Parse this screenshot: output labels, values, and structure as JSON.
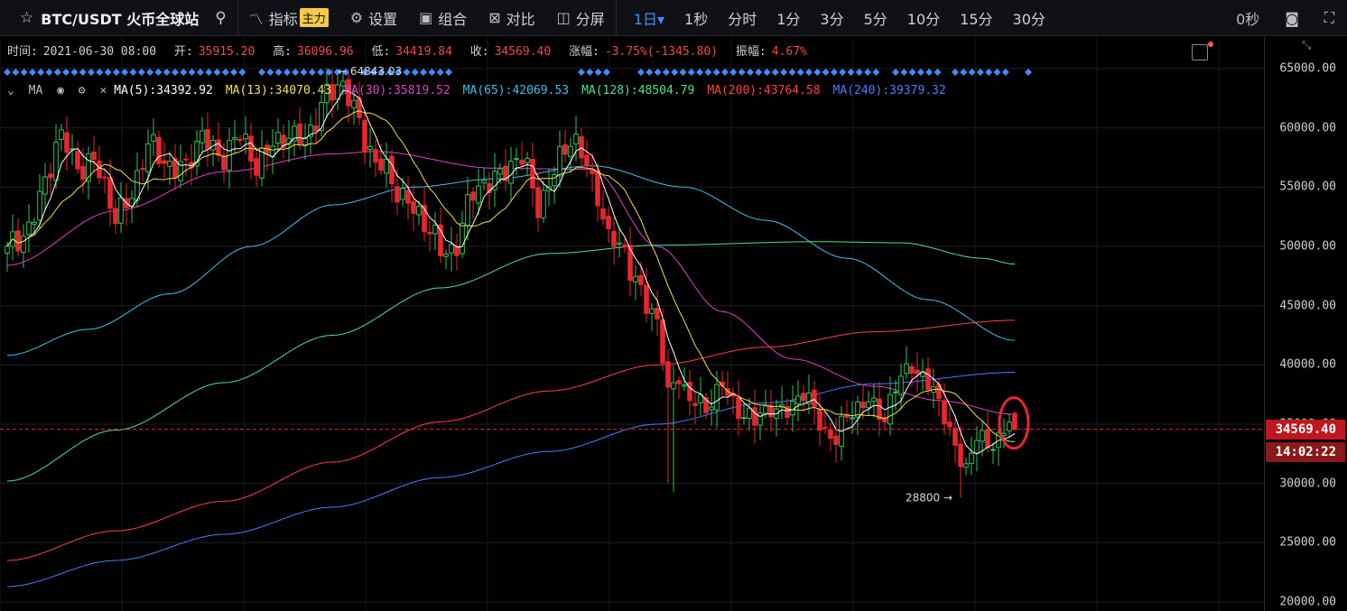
{
  "toolbar": {
    "symbol": "BTC/USDT 火币全球站",
    "indicator_label": "指标",
    "indicator_badge": "主力",
    "settings_label": "设置",
    "combo_label": "组合",
    "compare_label": "对比",
    "split_label": "分屏",
    "intervals": [
      {
        "label": "1日▾",
        "active": true
      },
      {
        "label": "1秒",
        "active": false
      },
      {
        "label": "分时",
        "active": false
      },
      {
        "label": "1分",
        "active": false
      },
      {
        "label": "3分",
        "active": false
      },
      {
        "label": "5分",
        "active": false
      },
      {
        "label": "10分",
        "active": false
      },
      {
        "label": "15分",
        "active": false
      },
      {
        "label": "30分",
        "active": false
      }
    ],
    "countdown": "0秒"
  },
  "ohlc": {
    "time_label": "时间:",
    "time_value": "2021-06-30 08:00",
    "open_label": "开:",
    "open_value": "35915.20",
    "high_label": "高:",
    "high_value": "36096.96",
    "low_label": "低:",
    "low_value": "34419.84",
    "close_label": "收:",
    "close_value": "34569.40",
    "change_label": "涨幅:",
    "change_value": "-3.75%(-1345.80)",
    "amp_label": "振幅:",
    "amp_value": "4.67%"
  },
  "ma_legend": {
    "name": "MA",
    "items": [
      {
        "label": "MA(5):34392.92",
        "color": "#ffffff"
      },
      {
        "label": "MA(13):34070.43",
        "color": "#f0e050"
      },
      {
        "label": "MA(30):35819.52",
        "color": "#e040c8"
      },
      {
        "label": "MA(65):42069.53",
        "color": "#40c0e8"
      },
      {
        "label": "MA(128):48504.79",
        "color": "#50e090"
      },
      {
        "label": "MA(200):43764.58",
        "color": "#ff4040"
      },
      {
        "label": "MA(240):39379.32",
        "color": "#4a7cff"
      }
    ]
  },
  "colors": {
    "up": "#2ec45a",
    "down": "#e8262e",
    "marker": "#3f8cff",
    "price_line": "#e8262e",
    "highlight": "#e8262e"
  },
  "annotations": {
    "high": "← 64843.03",
    "low": "28800 →"
  },
  "last_price": "34569.40",
  "countdown_tag": "14:02:22",
  "chart_data": {
    "type": "candlestick",
    "title": "",
    "ylim": [
      19500,
      68200
    ],
    "y_ticks": [
      "65000.00",
      "60000.00",
      "55000.00",
      "50000.00",
      "45000.00",
      "40000.00",
      "35000.00",
      "30000.00",
      "25000.00",
      "20000.00"
    ],
    "y_tick_values": [
      65000,
      60000,
      55000,
      50000,
      45000,
      40000,
      35000,
      30000,
      25000,
      20000
    ],
    "x_start": "2021-02-05",
    "x_end": "2021-06-30",
    "close_anchors": [
      {
        "i": 0,
        "v": 49000
      },
      {
        "i": 4,
        "v": 52000
      },
      {
        "i": 7,
        "v": 55500
      },
      {
        "i": 10,
        "v": 58800
      },
      {
        "i": 13,
        "v": 57500
      },
      {
        "i": 16,
        "v": 56800
      },
      {
        "i": 20,
        "v": 52500
      },
      {
        "i": 23,
        "v": 55000
      },
      {
        "i": 26,
        "v": 57800
      },
      {
        "i": 29,
        "v": 57600
      },
      {
        "i": 33,
        "v": 56500
      },
      {
        "i": 36,
        "v": 58900
      },
      {
        "i": 40,
        "v": 58200
      },
      {
        "i": 43,
        "v": 58700
      },
      {
        "i": 46,
        "v": 57000
      },
      {
        "i": 49,
        "v": 59200
      },
      {
        "i": 53,
        "v": 58400
      },
      {
        "i": 56,
        "v": 60500
      },
      {
        "i": 59,
        "v": 62500
      },
      {
        "i": 62,
        "v": 63300
      },
      {
        "i": 65,
        "v": 61200
      },
      {
        "i": 68,
        "v": 56500
      },
      {
        "i": 71,
        "v": 55500
      },
      {
        "i": 74,
        "v": 54200
      },
      {
        "i": 77,
        "v": 51600
      },
      {
        "i": 80,
        "v": 49500
      },
      {
        "i": 83,
        "v": 50800
      },
      {
        "i": 86,
        "v": 54000
      },
      {
        "i": 89,
        "v": 55600
      },
      {
        "i": 92,
        "v": 57000
      },
      {
        "i": 95,
        "v": 56800
      },
      {
        "i": 98,
        "v": 53900
      },
      {
        "i": 101,
        "v": 56500
      },
      {
        "i": 104,
        "v": 58600
      },
      {
        "i": 107,
        "v": 57300
      },
      {
        "i": 109,
        "v": 55000
      },
      {
        "i": 111,
        "v": 50000
      },
      {
        "i": 114,
        "v": 49500
      },
      {
        "i": 117,
        "v": 46500
      },
      {
        "i": 120,
        "v": 43500
      },
      {
        "i": 122,
        "v": 37000
      },
      {
        "i": 124,
        "v": 39500
      },
      {
        "i": 126,
        "v": 37500
      },
      {
        "i": 129,
        "v": 35800
      },
      {
        "i": 132,
        "v": 38500
      },
      {
        "i": 135,
        "v": 36500
      },
      {
        "i": 138,
        "v": 34700
      },
      {
        "i": 141,
        "v": 36800
      },
      {
        "i": 144,
        "v": 36200
      },
      {
        "i": 147,
        "v": 37300
      },
      {
        "i": 150,
        "v": 35500
      },
      {
        "i": 153,
        "v": 33800
      },
      {
        "i": 156,
        "v": 35800
      },
      {
        "i": 159,
        "v": 37400
      },
      {
        "i": 162,
        "v": 35600
      },
      {
        "i": 165,
        "v": 38500
      },
      {
        "i": 167,
        "v": 40500
      },
      {
        "i": 169,
        "v": 39200
      },
      {
        "i": 171,
        "v": 37600
      },
      {
        "i": 173,
        "v": 35500
      },
      {
        "i": 175,
        "v": 32800
      },
      {
        "i": 177,
        "v": 31800
      },
      {
        "i": 179,
        "v": 34300
      },
      {
        "i": 181,
        "v": 32300
      },
      {
        "i": 183,
        "v": 33800
      },
      {
        "i": 185,
        "v": 35900
      },
      {
        "i": 186,
        "v": 34569.4
      }
    ],
    "ma_series": [
      {
        "name": "MA(30)",
        "color": "#e040c8",
        "values": [
          [
            0,
            48400
          ],
          [
            20,
            53000
          ],
          [
            40,
            56300
          ],
          [
            60,
            57800
          ],
          [
            68,
            58000
          ],
          [
            90,
            56600
          ],
          [
            108,
            56500
          ],
          [
            120,
            50000
          ],
          [
            132,
            44500
          ],
          [
            145,
            40500
          ],
          [
            160,
            38200
          ],
          [
            172,
            37000
          ],
          [
            186,
            35819.52
          ]
        ]
      },
      {
        "name": "MA(65)",
        "color": "#40c0e8",
        "values": [
          [
            0,
            40800
          ],
          [
            15,
            43000
          ],
          [
            30,
            46000
          ],
          [
            45,
            50000
          ],
          [
            60,
            53500
          ],
          [
            75,
            55000
          ],
          [
            90,
            55700
          ],
          [
            108,
            56800
          ],
          [
            125,
            55000
          ],
          [
            140,
            52200
          ],
          [
            155,
            49000
          ],
          [
            170,
            45500
          ],
          [
            186,
            42069.53
          ]
        ]
      },
      {
        "name": "MA(128)",
        "color": "#50e090",
        "values": [
          [
            0,
            30200
          ],
          [
            20,
            34500
          ],
          [
            40,
            38500
          ],
          [
            60,
            42500
          ],
          [
            80,
            46500
          ],
          [
            100,
            49400
          ],
          [
            120,
            50100
          ],
          [
            150,
            50400
          ],
          [
            165,
            50300
          ],
          [
            180,
            49000
          ],
          [
            186,
            48504.79
          ]
        ]
      },
      {
        "name": "MA(200)",
        "color": "#ff4040",
        "values": [
          [
            0,
            23500
          ],
          [
            20,
            26000
          ],
          [
            40,
            28500
          ],
          [
            60,
            31800
          ],
          [
            80,
            35200
          ],
          [
            100,
            37800
          ],
          [
            120,
            40000
          ],
          [
            140,
            41500
          ],
          [
            160,
            42800
          ],
          [
            186,
            43764.58
          ]
        ]
      },
      {
        "name": "MA(240)",
        "color": "#4a7cff",
        "values": [
          [
            0,
            21300
          ],
          [
            20,
            23500
          ],
          [
            40,
            25700
          ],
          [
            60,
            28000
          ],
          [
            80,
            30500
          ],
          [
            100,
            32700
          ],
          [
            120,
            35000
          ],
          [
            140,
            36800
          ],
          [
            160,
            38400
          ],
          [
            186,
            39379.32
          ]
        ]
      }
    ]
  }
}
